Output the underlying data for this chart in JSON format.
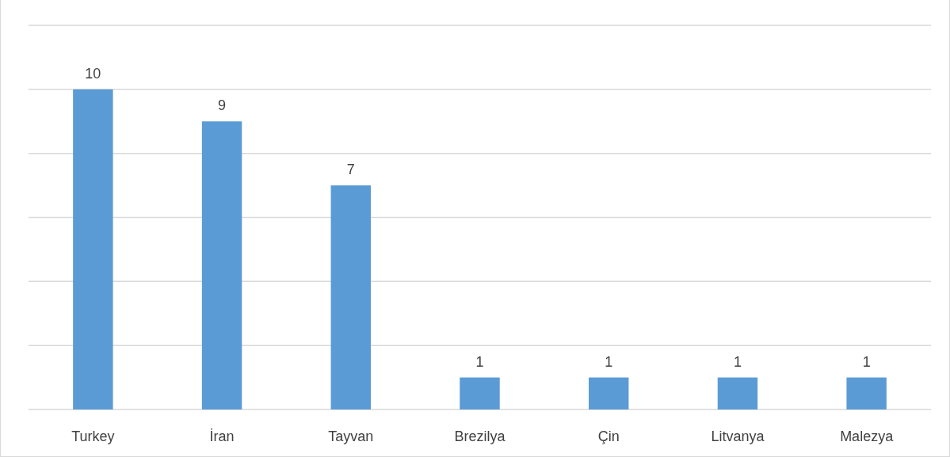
{
  "chart_data": {
    "type": "bar",
    "categories": [
      "Turkey",
      "İran",
      "Tayvan",
      "Brezilya",
      "Çin",
      "Litvanya",
      "Malezya"
    ],
    "values": [
      10,
      9,
      7,
      1,
      1,
      1,
      1
    ],
    "color": "#5b9bd5",
    "ylim": [
      0,
      12
    ],
    "yticks": [
      {
        "value": 0,
        "label": null
      },
      {
        "value": 2,
        "label": null
      },
      {
        "value": 4,
        "label": null
      },
      {
        "value": 6,
        "label": null
      },
      {
        "value": 8,
        "label": null
      },
      {
        "value": 10,
        "label": null
      },
      {
        "value": 12,
        "label": null
      }
    ],
    "grid": "y",
    "data_labels": true,
    "tick_labels": "x"
  }
}
